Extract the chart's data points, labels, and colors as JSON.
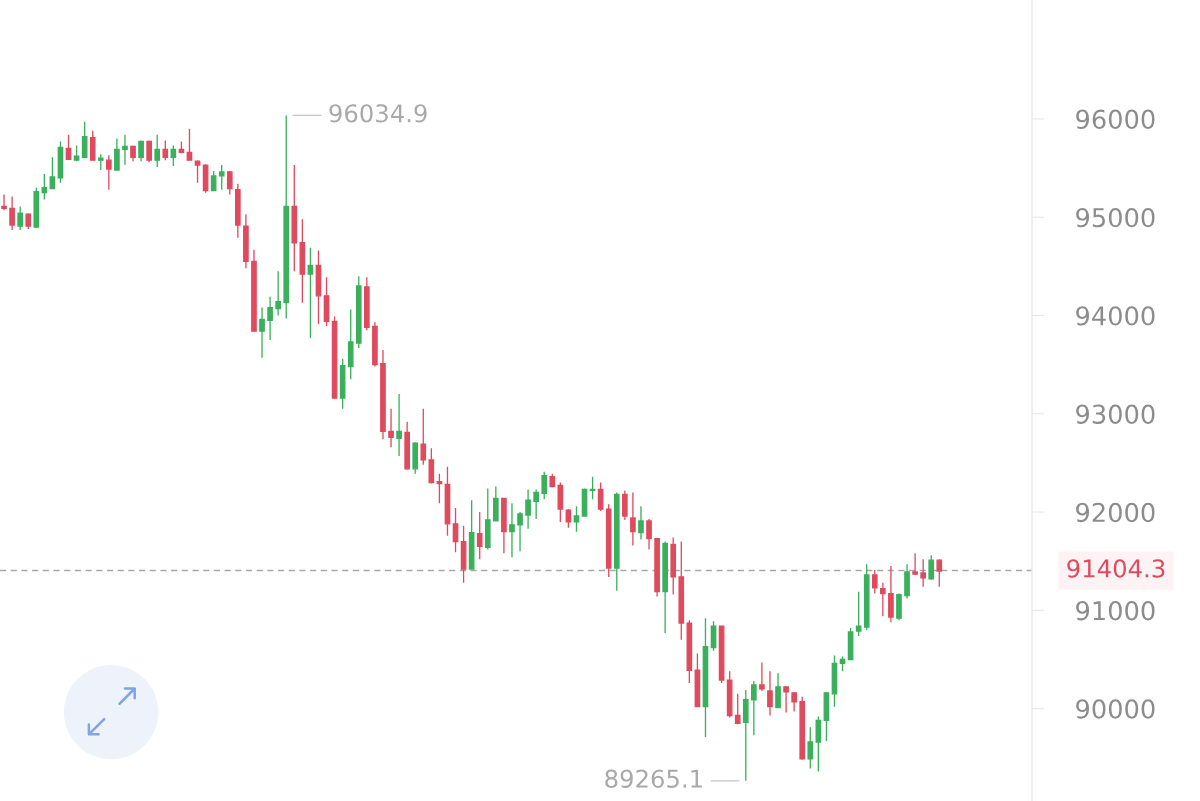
{
  "chart_data": {
    "type": "candlestick",
    "categories": [
      null,
      null,
      null,
      null,
      null,
      null,
      null,
      null,
      null,
      null,
      null,
      null,
      null,
      null,
      null,
      null,
      null,
      null,
      null,
      null,
      null,
      null,
      null,
      null,
      null,
      null,
      null,
      null,
      null,
      null,
      null,
      null,
      null,
      null,
      null,
      null,
      null,
      null,
      null,
      null,
      null,
      null,
      null,
      null,
      null,
      null,
      null,
      null,
      null,
      null,
      null,
      null,
      null,
      null,
      null,
      null,
      null,
      null,
      null,
      null,
      null,
      null,
      null,
      null,
      null,
      null,
      null,
      null,
      null,
      null,
      null,
      null,
      null,
      null,
      null,
      null,
      null,
      null,
      null,
      null,
      null,
      null,
      null,
      null,
      null,
      null,
      null,
      null,
      null,
      null,
      null,
      null,
      null,
      null,
      null,
      null,
      null,
      null,
      null,
      null,
      null,
      null,
      null,
      null,
      null,
      null,
      null,
      null,
      null,
      null,
      null,
      null,
      null,
      null,
      null,
      null,
      null,
      null,
      null,
      null,
      null,
      null,
      null,
      null,
      null,
      null,
      null,
      null
    ],
    "ohlc": [
      [
        95110,
        95230,
        95070,
        95090
      ],
      [
        95090,
        95210,
        94870,
        94920
      ],
      [
        94910,
        95110,
        94870,
        95040
      ],
      [
        95030,
        95040,
        94880,
        94910
      ],
      [
        94900,
        95300,
        94890,
        95260
      ],
      [
        95250,
        95440,
        95180,
        95300
      ],
      [
        95290,
        95610,
        95290,
        95410
      ],
      [
        95400,
        95770,
        95350,
        95710
      ],
      [
        95700,
        95840,
        95590,
        95590
      ],
      [
        95580,
        95730,
        95570,
        95620
      ],
      [
        95610,
        95970,
        95610,
        95820
      ],
      [
        95810,
        95880,
        95580,
        95580
      ],
      [
        95580,
        95640,
        95480,
        95600
      ],
      [
        95580,
        95630,
        95280,
        95490
      ],
      [
        95480,
        95800,
        95480,
        95690
      ],
      [
        95690,
        95840,
        95530,
        95720
      ],
      [
        95720,
        95730,
        95570,
        95610
      ],
      [
        95610,
        95780,
        95570,
        95770
      ],
      [
        95770,
        95780,
        95560,
        95580
      ],
      [
        95580,
        95840,
        95510,
        95690
      ],
      [
        95690,
        95780,
        95580,
        95610
      ],
      [
        95610,
        95730,
        95520,
        95690
      ],
      [
        95690,
        95770,
        95650,
        95660
      ],
      [
        95660,
        95900,
        95580,
        95580
      ],
      [
        95570,
        95580,
        95350,
        95530
      ],
      [
        95530,
        95540,
        95250,
        95270
      ],
      [
        95270,
        95470,
        95270,
        95420
      ],
      [
        95420,
        95530,
        95280,
        95460
      ],
      [
        95460,
        95470,
        95230,
        95290
      ],
      [
        95280,
        95340,
        94790,
        94920
      ],
      [
        94910,
        95030,
        94480,
        94550
      ],
      [
        94550,
        94670,
        93840,
        93840
      ],
      [
        93840,
        94080,
        93570,
        93960
      ],
      [
        93950,
        94190,
        93750,
        94080
      ],
      [
        94070,
        94450,
        94000,
        94140
      ],
      [
        94130,
        96034.9,
        93970,
        95110
      ],
      [
        95110,
        95530,
        94450,
        94740
      ],
      [
        94740,
        94980,
        94130,
        94420
      ],
      [
        94420,
        94690,
        93770,
        94510
      ],
      [
        94510,
        94660,
        93910,
        94200
      ],
      [
        94200,
        94390,
        93890,
        93940
      ],
      [
        93940,
        93990,
        93150,
        93160
      ],
      [
        93160,
        93560,
        93050,
        93490
      ],
      [
        93480,
        94060,
        93350,
        93730
      ],
      [
        93720,
        94400,
        93670,
        94300
      ],
      [
        94290,
        94390,
        93850,
        93880
      ],
      [
        93890,
        93930,
        93480,
        93500
      ],
      [
        93510,
        93650,
        92740,
        92820
      ],
      [
        92820,
        93050,
        92660,
        92760
      ],
      [
        92750,
        93200,
        92570,
        92820
      ],
      [
        92810,
        92920,
        92430,
        92440
      ],
      [
        92440,
        92710,
        92390,
        92700
      ],
      [
        92690,
        93050,
        92480,
        92530
      ],
      [
        92530,
        92650,
        92290,
        92300
      ],
      [
        92310,
        92390,
        92090,
        92290
      ],
      [
        92280,
        92460,
        91760,
        91880
      ],
      [
        91880,
        92040,
        91590,
        91700
      ],
      [
        91700,
        91860,
        91280,
        91420
      ],
      [
        91420,
        92120,
        91420,
        91790
      ],
      [
        91780,
        92000,
        91520,
        91650
      ],
      [
        91640,
        92240,
        91620,
        91920
      ],
      [
        91910,
        92260,
        91910,
        92140
      ],
      [
        92140,
        92140,
        91580,
        91800
      ],
      [
        91800,
        92090,
        91540,
        91870
      ],
      [
        91870,
        92000,
        91600,
        91980
      ],
      [
        91970,
        92230,
        91830,
        92120
      ],
      [
        92110,
        92230,
        91930,
        92200
      ],
      [
        92190,
        92410,
        92130,
        92370
      ],
      [
        92360,
        92390,
        92250,
        92260
      ],
      [
        92270,
        92300,
        91900,
        92030
      ],
      [
        92020,
        92030,
        91840,
        91900
      ],
      [
        91900,
        92060,
        91800,
        91960
      ],
      [
        91960,
        92240,
        91960,
        92230
      ],
      [
        92220,
        92360,
        92130,
        92230
      ],
      [
        92230,
        92300,
        92010,
        92030
      ],
      [
        92030,
        92080,
        91340,
        91430
      ],
      [
        91430,
        92200,
        91200,
        92180
      ],
      [
        92180,
        92220,
        91920,
        91960
      ],
      [
        91940,
        92200,
        91660,
        91800
      ],
      [
        91790,
        92060,
        91720,
        91910
      ],
      [
        91910,
        91930,
        91620,
        91730
      ],
      [
        91730,
        91730,
        91140,
        91190
      ],
      [
        91190,
        91700,
        90770,
        91680
      ],
      [
        91670,
        91740,
        91160,
        91340
      ],
      [
        91340,
        91700,
        90700,
        90870
      ],
      [
        90870,
        90900,
        90260,
        90390
      ],
      [
        90390,
        90560,
        90020,
        90020
      ],
      [
        90020,
        90920,
        89710,
        90630
      ],
      [
        90620,
        90890,
        90590,
        90840
      ],
      [
        90840,
        90840,
        90260,
        90290
      ],
      [
        90290,
        90380,
        89910,
        89930
      ],
      [
        89930,
        90150,
        89840,
        89850
      ],
      [
        89860,
        90190,
        89265.1,
        90090
      ],
      [
        90090,
        90280,
        89730,
        90240
      ],
      [
        90240,
        90470,
        90180,
        90200
      ],
      [
        90180,
        90380,
        89930,
        90020
      ],
      [
        90010,
        90360,
        90010,
        90220
      ],
      [
        90220,
        90230,
        89960,
        90170
      ],
      [
        90160,
        90170,
        89970,
        90070
      ],
      [
        90070,
        90120,
        89480,
        89490
      ],
      [
        89490,
        89810,
        89390,
        89660
      ],
      [
        89660,
        89920,
        89360,
        89880
      ],
      [
        89880,
        90170,
        89670,
        90160
      ],
      [
        90150,
        90540,
        90020,
        90460
      ],
      [
        90460,
        90530,
        90380,
        90500
      ],
      [
        90500,
        90820,
        90500,
        90780
      ],
      [
        90790,
        91190,
        90740,
        90840
      ],
      [
        90830,
        91470,
        90800,
        91360
      ],
      [
        91360,
        91410,
        91170,
        91230
      ],
      [
        91220,
        91280,
        90940,
        91170
      ],
      [
        91170,
        91450,
        90880,
        90930
      ],
      [
        90920,
        91170,
        90900,
        91160
      ],
      [
        91150,
        91470,
        91120,
        91390
      ],
      [
        91390,
        91580,
        91360,
        91370
      ],
      [
        91380,
        91520,
        91240,
        91330
      ],
      [
        91320,
        91560,
        91310,
        91510
      ],
      [
        91510,
        91520,
        91240,
        91400
      ],
      null,
      null,
      null,
      null,
      null,
      null,
      null,
      null,
      null,
      null,
      null
    ],
    "colors": [
      "#df4b5e",
      "#df4b5e",
      "#3bb05c",
      "#df4b5e",
      "#3bb05c",
      "#3bb05c",
      "#3bb05c",
      "#3bb05c",
      "#df4b5e",
      "#3bb05c",
      "#3bb05c",
      "#df4b5e",
      "#3bb05c",
      "#df4b5e",
      "#3bb05c",
      "#3bb05c",
      "#df4b5e",
      "#3bb05c",
      "#df4b5e",
      "#3bb05c",
      "#df4b5e",
      "#3bb05c",
      "#df4b5e",
      "#df4b5e",
      "#df4b5e",
      "#df4b5e",
      "#3bb05c",
      "#3bb05c",
      "#df4b5e",
      "#df4b5e",
      "#df4b5e",
      "#df4b5e",
      "#3bb05c",
      "#3bb05c",
      "#3bb05c",
      "#3bb05c",
      "#df4b5e",
      "#df4b5e",
      "#3bb05c",
      "#df4b5e",
      "#df4b5e",
      "#df4b5e",
      "#3bb05c",
      "#3bb05c",
      "#3bb05c",
      "#df4b5e",
      "#df4b5e",
      "#df4b5e",
      "#df4b5e",
      "#3bb05c",
      "#df4b5e",
      "#3bb05c",
      "#df4b5e",
      "#df4b5e",
      "#df4b5e",
      "#df4b5e",
      "#df4b5e",
      "#df4b5e",
      "#3bb05c",
      "#df4b5e",
      "#3bb05c",
      "#3bb05c",
      "#df4b5e",
      "#3bb05c",
      "#3bb05c",
      "#3bb05c",
      "#3bb05c",
      "#3bb05c",
      "#df4b5e",
      "#df4b5e",
      "#df4b5e",
      "#3bb05c",
      "#3bb05c",
      "#3bb05c",
      "#df4b5e",
      "#df4b5e",
      "#3bb05c",
      "#df4b5e",
      "#df4b5e",
      "#3bb05c",
      "#df4b5e",
      "#df4b5e",
      "#3bb05c",
      "#df4b5e",
      "#df4b5e",
      "#df4b5e",
      "#df4b5e",
      "#3bb05c",
      "#3bb05c",
      "#df4b5e",
      "#df4b5e",
      "#df4b5e",
      "#3bb05c",
      "#3bb05c",
      "#df4b5e",
      "#df4b5e",
      "#3bb05c",
      "#df4b5e",
      "#df4b5e",
      "#df4b5e",
      "#3bb05c",
      "#3bb05c",
      "#3bb05c",
      "#3bb05c",
      "#3bb05c",
      "#3bb05c",
      "#3bb05c",
      "#3bb05c",
      "#df4b5e",
      "#df4b5e",
      "#df4b5e",
      "#3bb05c",
      "#3bb05c",
      "#df4b5e",
      "#df4b5e",
      "#3bb05c",
      "#df4b5e",
      null,
      null,
      null,
      null,
      null,
      null,
      null,
      null,
      null,
      null,
      null
    ],
    "ylim": [
      89060,
      97210
    ],
    "yticks": [
      90000,
      91000,
      92000,
      93000,
      94000,
      95000,
      96000
    ],
    "tick_labels": "y",
    "ref_lines": [
      {
        "axis": "y",
        "value": 91404.3,
        "label": "91404.3",
        "color": "#a8a8a8",
        "line_style": "dashed"
      }
    ],
    "annotations": [
      "96034.9",
      "89265.1"
    ]
  }
}
